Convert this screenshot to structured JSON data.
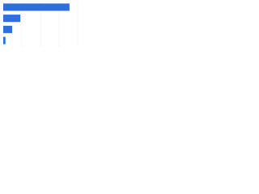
{
  "chart_data": {
    "type": "hbar",
    "categories": [
      null,
      null,
      null,
      null
    ],
    "values": [
      89,
      23,
      12,
      3
    ],
    "color": "#2f6fdc",
    "xlim": [
      0,
      100
    ],
    "xticks": [
      0,
      25,
      50,
      75,
      100
    ],
    "grid": true
  }
}
